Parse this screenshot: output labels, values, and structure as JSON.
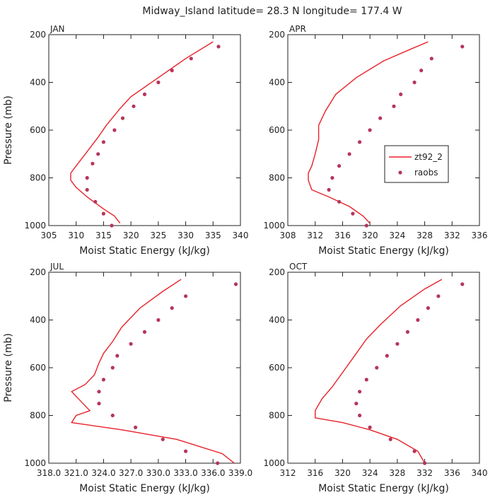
{
  "chart_data": {
    "title": "Midway_Island   latitude= 28.3 N longitude= 177.4 W",
    "legend": {
      "placement": "inside-right (APR panel)",
      "entries": [
        "zt92_2",
        "raobs"
      ]
    },
    "series_colors": {
      "model": "#e8202a",
      "raobs": "#b5365a"
    },
    "panels": [
      {
        "type": "line",
        "name": "JAN",
        "xlabel": "Moist Static Energy (kJ/kg)",
        "ylabel": "Pressure (mb)",
        "xlim": [
          305,
          340
        ],
        "ylim": [
          200,
          1000
        ],
        "xticks": [
          305,
          310,
          315,
          320,
          325,
          330,
          335,
          340
        ],
        "xtick_labels": [
          "305",
          "310",
          "315",
          "320",
          "325",
          "330",
          "335",
          "340"
        ],
        "yticks": [
          200,
          400,
          600,
          800,
          1000
        ],
        "ytick_labels": [
          "200",
          "400",
          "600",
          "800",
          "1000"
        ],
        "series": [
          {
            "name": "zt92_2",
            "kind": "line",
            "points": [
              [
                335.0,
                230
              ],
              [
                330.0,
                300
              ],
              [
                325.0,
                380
              ],
              [
                320.0,
                460
              ],
              [
                318.0,
                510
              ],
              [
                315.5,
                580
              ],
              [
                314.0,
                630
              ],
              [
                312.0,
                690
              ],
              [
                310.0,
                750
              ],
              [
                309.0,
                780
              ],
              [
                309.0,
                810
              ],
              [
                310.0,
                840
              ],
              [
                312.0,
                880
              ],
              [
                315.0,
                930
              ],
              [
                317.0,
                960
              ],
              [
                318.0,
                990
              ]
            ]
          },
          {
            "name": "raobs",
            "kind": "points",
            "points": [
              [
                336.0,
                250
              ],
              [
                331.0,
                300
              ],
              [
                327.5,
                350
              ],
              [
                325.0,
                400
              ],
              [
                322.5,
                450
              ],
              [
                320.5,
                500
              ],
              [
                318.5,
                550
              ],
              [
                317.0,
                600
              ],
              [
                315.0,
                650
              ],
              [
                314.0,
                700
              ],
              [
                313.0,
                740
              ],
              [
                312.0,
                800
              ],
              [
                312.0,
                850
              ],
              [
                313.5,
                900
              ],
              [
                315.0,
                950
              ],
              [
                316.5,
                1000
              ]
            ]
          }
        ]
      },
      {
        "type": "line",
        "name": "APR",
        "xlabel": "Moist Static Energy (kJ/kg)",
        "ylabel": "",
        "xlim": [
          308,
          336
        ],
        "ylim": [
          200,
          1000
        ],
        "xticks": [
          308,
          312,
          316,
          320,
          324,
          328,
          332,
          336
        ],
        "xtick_labels": [
          "308",
          "312",
          "316",
          "320",
          "324",
          "328",
          "332",
          "336"
        ],
        "yticks": [
          200,
          400,
          600,
          800,
          1000
        ],
        "ytick_labels": [
          "200",
          "400",
          "600",
          "800",
          "1000"
        ],
        "series": [
          {
            "name": "zt92_2",
            "kind": "line",
            "points": [
              [
                328.5,
                230
              ],
              [
                326.0,
                260
              ],
              [
                322.0,
                310
              ],
              [
                318.0,
                380
              ],
              [
                315.0,
                450
              ],
              [
                313.5,
                520
              ],
              [
                312.5,
                580
              ],
              [
                312.5,
                640
              ],
              [
                312.0,
                700
              ],
              [
                311.5,
                750
              ],
              [
                311.0,
                780
              ],
              [
                311.0,
                810
              ],
              [
                311.5,
                850
              ],
              [
                314.0,
                880
              ],
              [
                317.0,
                920
              ],
              [
                319.0,
                960
              ],
              [
                320.0,
                990
              ]
            ]
          },
          {
            "name": "raobs",
            "kind": "points",
            "points": [
              [
                333.5,
                250
              ],
              [
                329.0,
                300
              ],
              [
                327.5,
                350
              ],
              [
                326.5,
                400
              ],
              [
                324.5,
                450
              ],
              [
                323.5,
                500
              ],
              [
                321.5,
                550
              ],
              [
                320.0,
                600
              ],
              [
                318.5,
                650
              ],
              [
                317.0,
                700
              ],
              [
                315.5,
                750
              ],
              [
                314.5,
                800
              ],
              [
                314.0,
                850
              ],
              [
                315.5,
                900
              ],
              [
                317.5,
                950
              ],
              [
                319.5,
                1000
              ]
            ]
          }
        ]
      },
      {
        "type": "line",
        "name": "JUL",
        "xlabel": "Moist Static Energy (kJ/kg)",
        "ylabel": "Pressure (mb)",
        "xlim": [
          318.0,
          339.0
        ],
        "ylim": [
          200,
          1000
        ],
        "xticks": [
          318.0,
          321.0,
          324.0,
          327.0,
          330.0,
          333.0,
          336.0,
          339.0
        ],
        "xtick_labels": [
          "318.0",
          "321.0",
          "324.0",
          "327.0",
          "330.0",
          "333.0",
          "336.0",
          "339.0"
        ],
        "yticks": [
          200,
          400,
          600,
          800,
          1000
        ],
        "ytick_labels": [
          "200",
          "400",
          "600",
          "800",
          "1000"
        ],
        "series": [
          {
            "name": "zt92_2",
            "kind": "line",
            "points": [
              [
                332.5,
                230
              ],
              [
                330.5,
                280
              ],
              [
                328.0,
                350
              ],
              [
                326.0,
                430
              ],
              [
                325.0,
                490
              ],
              [
                324.0,
                540
              ],
              [
                323.5,
                580
              ],
              [
                323.0,
                630
              ],
              [
                322.0,
                670
              ],
              [
                320.5,
                700
              ],
              [
                321.5,
                740
              ],
              [
                322.5,
                780
              ],
              [
                321.0,
                800
              ],
              [
                320.5,
                830
              ],
              [
                326.0,
                860
              ],
              [
                332.0,
                900
              ],
              [
                337.0,
                960
              ],
              [
                339.0,
                1020
              ]
            ]
          },
          {
            "name": "raobs",
            "kind": "points",
            "points": [
              [
                338.5,
                250
              ],
              [
                333.0,
                300
              ],
              [
                331.5,
                350
              ],
              [
                330.0,
                400
              ],
              [
                328.5,
                450
              ],
              [
                327.0,
                500
              ],
              [
                325.5,
                550
              ],
              [
                325.0,
                600
              ],
              [
                324.0,
                650
              ],
              [
                323.5,
                700
              ],
              [
                323.5,
                750
              ],
              [
                325.0,
                800
              ],
              [
                327.5,
                850
              ],
              [
                330.5,
                900
              ],
              [
                333.0,
                950
              ],
              [
                336.5,
                1000
              ]
            ]
          }
        ]
      },
      {
        "type": "line",
        "name": "OCT",
        "xlabel": "Moist Static Energy (kJ/kg)",
        "ylabel": "",
        "xlim": [
          312,
          340
        ],
        "ylim": [
          200,
          1000
        ],
        "xticks": [
          312,
          316,
          320,
          324,
          328,
          332,
          336,
          340
        ],
        "xtick_labels": [
          "312",
          "316",
          "320",
          "324",
          "328",
          "332",
          "336",
          "340"
        ],
        "yticks": [
          200,
          400,
          600,
          800,
          1000
        ],
        "ytick_labels": [
          "200",
          "400",
          "600",
          "800",
          "1000"
        ],
        "series": [
          {
            "name": "zt92_2",
            "kind": "line",
            "points": [
              [
                334.5,
                230
              ],
              [
                332.0,
                270
              ],
              [
                328.5,
                340
              ],
              [
                325.5,
                420
              ],
              [
                323.5,
                480
              ],
              [
                322.0,
                540
              ],
              [
                320.5,
                600
              ],
              [
                319.5,
                640
              ],
              [
                318.5,
                680
              ],
              [
                317.0,
                730
              ],
              [
                316.0,
                780
              ],
              [
                316.0,
                810
              ],
              [
                320.0,
                830
              ],
              [
                324.0,
                860
              ],
              [
                328.0,
                900
              ],
              [
                331.0,
                950
              ],
              [
                332.0,
                1000
              ]
            ]
          },
          {
            "name": "raobs",
            "kind": "points",
            "points": [
              [
                337.5,
                250
              ],
              [
                334.0,
                300
              ],
              [
                332.5,
                350
              ],
              [
                331.0,
                400
              ],
              [
                329.5,
                450
              ],
              [
                328.0,
                500
              ],
              [
                326.5,
                550
              ],
              [
                325.0,
                600
              ],
              [
                323.5,
                650
              ],
              [
                322.5,
                700
              ],
              [
                322.0,
                750
              ],
              [
                322.5,
                800
              ],
              [
                324.0,
                850
              ],
              [
                327.0,
                900
              ],
              [
                330.5,
                950
              ],
              [
                332.0,
                1000
              ]
            ]
          }
        ]
      }
    ]
  }
}
